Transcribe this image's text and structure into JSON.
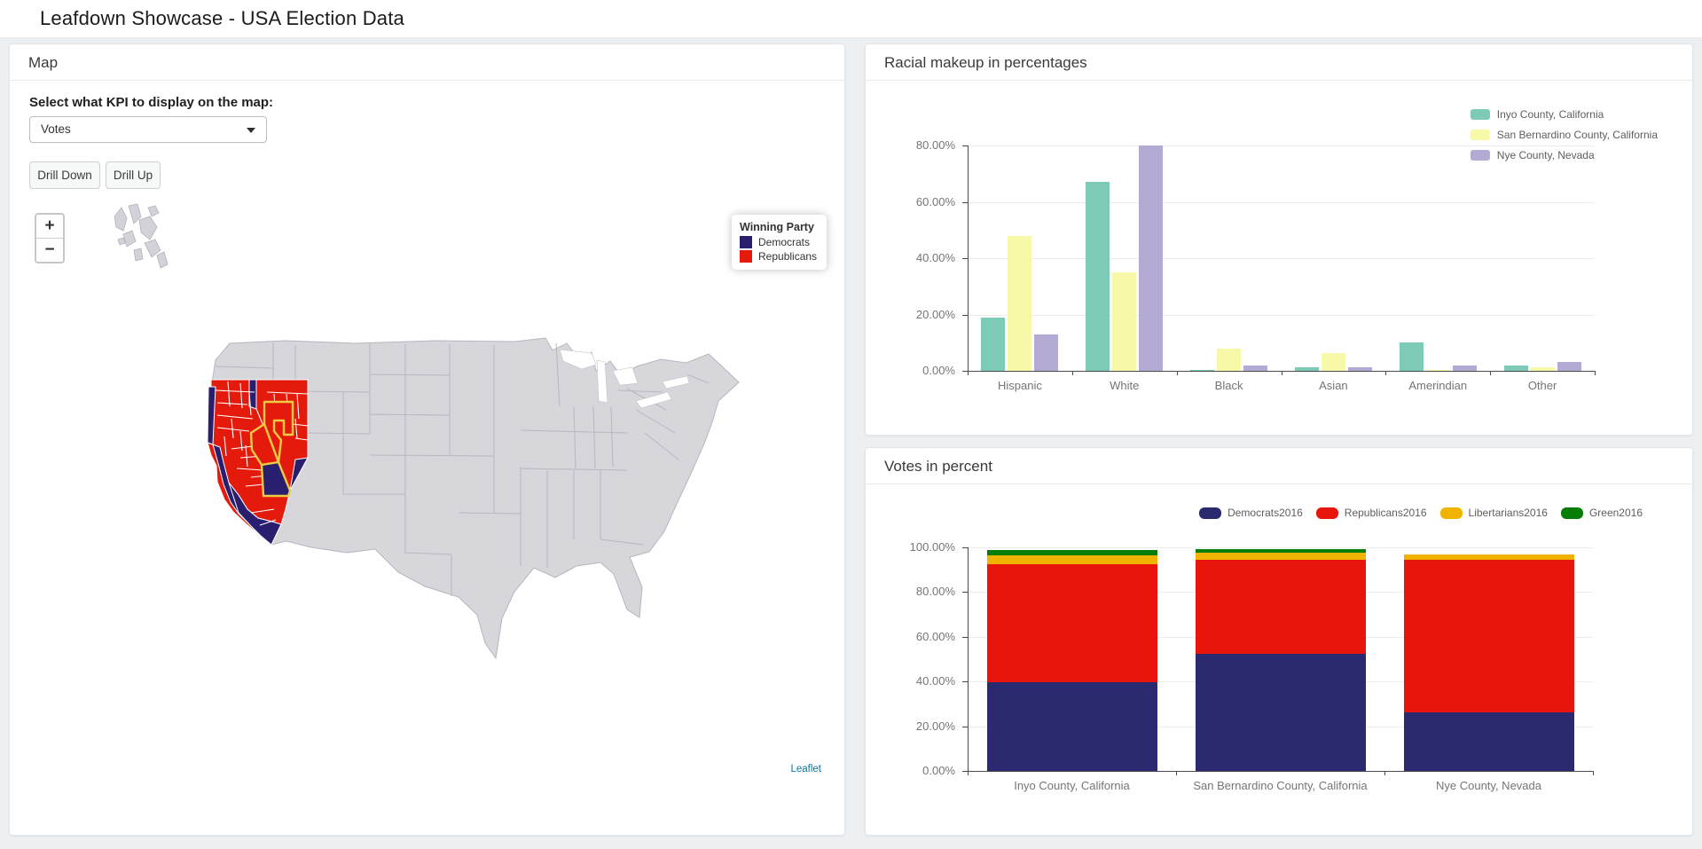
{
  "header": {
    "title": "Leafdown Showcase - USA Election Data"
  },
  "map_panel": {
    "title": "Map",
    "kpi_label": "Select what KPI to display on the map:",
    "kpi_value": "Votes",
    "buttons": {
      "drill_down": "Drill Down",
      "drill_up": "Drill Up"
    },
    "zoom": {
      "in": "+",
      "out": "−"
    },
    "map_legend": {
      "title": "Winning Party",
      "items": [
        {
          "label": "Democrats",
          "color": "#2a1f6e"
        },
        {
          "label": "Republicans",
          "color": "#e41b0c"
        }
      ]
    },
    "attribution": "Leaflet"
  },
  "chart_data": [
    {
      "id": "racial",
      "panel_title": "Racial makeup in percentages",
      "type": "bar",
      "categories": [
        "Hispanic",
        "White",
        "Black",
        "Asian",
        "Amerindian",
        "Other"
      ],
      "series": [
        {
          "name": "Inyo County, California",
          "color": "#7dcbb6",
          "values": [
            19,
            67,
            0.4,
            1.2,
            10,
            2
          ]
        },
        {
          "name": "San Bernardino County, California",
          "color": "#f7f9a9",
          "values": [
            48,
            35,
            8,
            6.3,
            0.4,
            1.3
          ]
        },
        {
          "name": "Nye County, Nevada",
          "color": "#b4abd4",
          "values": [
            13,
            80,
            2,
            1.2,
            2,
            3
          ]
        }
      ],
      "ylim": [
        0,
        80
      ],
      "yticks": [
        0,
        20,
        40,
        60,
        80
      ],
      "ytick_labels": [
        "0.00%",
        "20.00%",
        "40.00%",
        "60.00%",
        "80.00%"
      ],
      "xlabel": "",
      "ylabel": "",
      "grid": true,
      "legend_position": "top-right"
    },
    {
      "id": "votes",
      "panel_title": "Votes in percent",
      "type": "bar-stacked",
      "categories": [
        "Inyo County, California",
        "San Bernardino County, California",
        "Nye County, Nevada"
      ],
      "series": [
        {
          "name": "Democrats2016",
          "color": "#2b2a71",
          "values": [
            39.5,
            52.4,
            26.0
          ]
        },
        {
          "name": "Republicans2016",
          "color": "#e8150d",
          "values": [
            53.0,
            42.2,
            68.5
          ]
        },
        {
          "name": "Libertarians2016",
          "color": "#f0b400",
          "values": [
            4.0,
            3.1,
            2.5
          ]
        },
        {
          "name": "Green2016",
          "color": "#067d06",
          "values": [
            2.5,
            1.5,
            0
          ]
        }
      ],
      "ylim": [
        0,
        100
      ],
      "yticks": [
        0,
        20,
        40,
        60,
        80,
        100
      ],
      "ytick_labels": [
        "0.00%",
        "20.00%",
        "40.00%",
        "60.00%",
        "80.00%",
        "100.00%"
      ],
      "xlabel": "",
      "ylabel": "",
      "grid": true,
      "legend_position": "top-right"
    }
  ]
}
